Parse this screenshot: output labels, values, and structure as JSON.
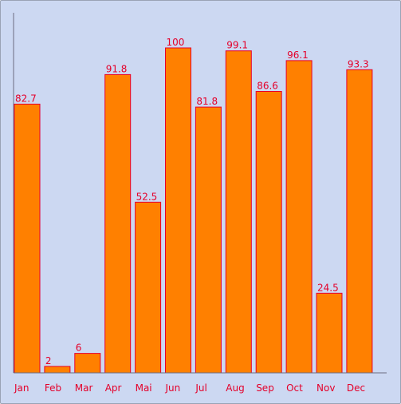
{
  "chart_data": {
    "type": "bar",
    "categories": [
      "Jan",
      "Feb",
      "Mar",
      "Apr",
      "Mai",
      "Jun",
      "Jul",
      "Aug",
      "Sep",
      "Oct",
      "Nov",
      "Dec"
    ],
    "values": [
      82.7,
      2,
      6,
      91.8,
      52.5,
      100,
      81.8,
      99.1,
      86.6,
      96.1,
      24.5,
      93.3
    ],
    "value_labels": [
      "82.7",
      "2",
      "6",
      "91.8",
      "52.5",
      "100",
      "81.8",
      "99.1",
      "86.6",
      "96.1",
      "24.5",
      "93.3"
    ],
    "title": "",
    "xlabel": "",
    "ylabel": "",
    "ylim": [
      0,
      100
    ],
    "grid": false,
    "legend": "none",
    "colors": {
      "bar_fill": "#ff8000",
      "bar_stroke": "#e8002a",
      "label": "#e4002a",
      "background": "#ccd8f2"
    }
  }
}
